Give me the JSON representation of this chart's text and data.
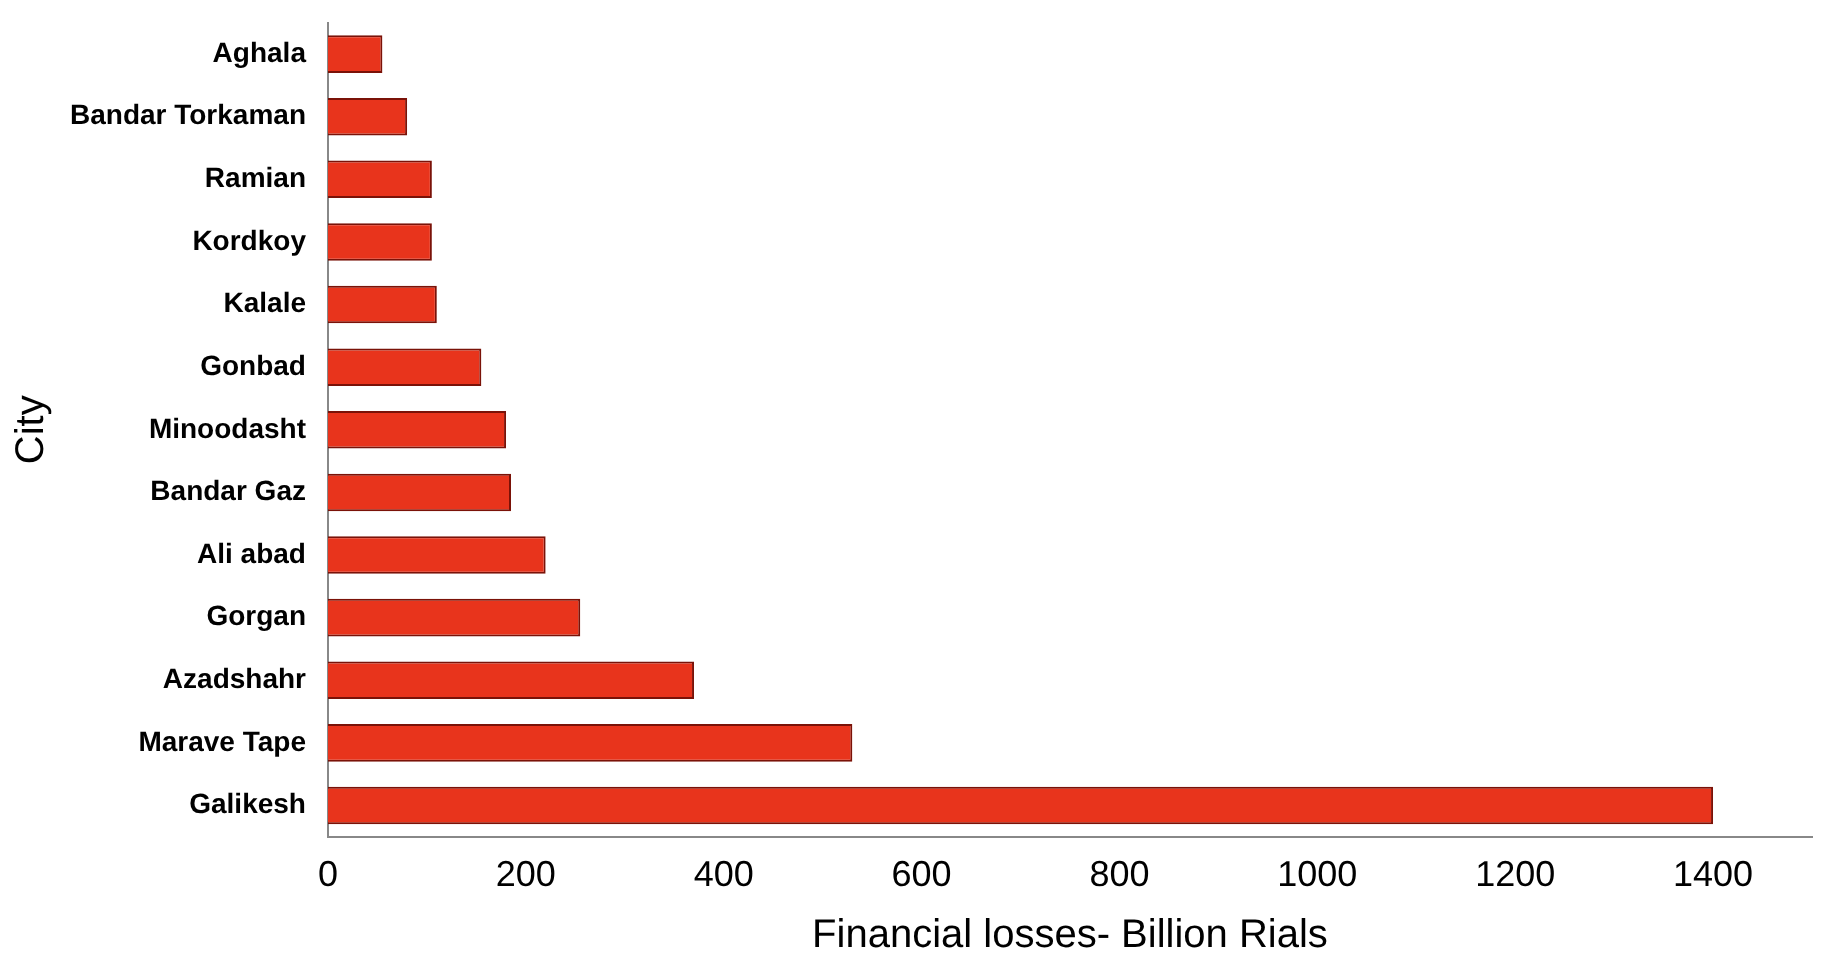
{
  "chart_data": {
    "type": "bar",
    "orientation": "horizontal",
    "xlabel": "Financial losses- Billion Rials",
    "ylabel": "City",
    "categories": [
      "Aghala",
      "Bandar Torkaman",
      "Ramian",
      "Kordkoy",
      "Kalale",
      "Gonbad",
      "Minoodasht",
      "Bandar Gaz",
      "Ali abad",
      "Gorgan",
      "Azadshahr",
      "Marave Tape",
      "Galikesh"
    ],
    "values": [
      55,
      80,
      105,
      105,
      110,
      155,
      180,
      185,
      220,
      255,
      370,
      530,
      1400
    ],
    "color": "#e8341c",
    "xlim": [
      0,
      1500
    ],
    "xticks": [
      0,
      200,
      400,
      600,
      800,
      1000,
      1200,
      1400
    ],
    "grid": false,
    "legend": false
  }
}
